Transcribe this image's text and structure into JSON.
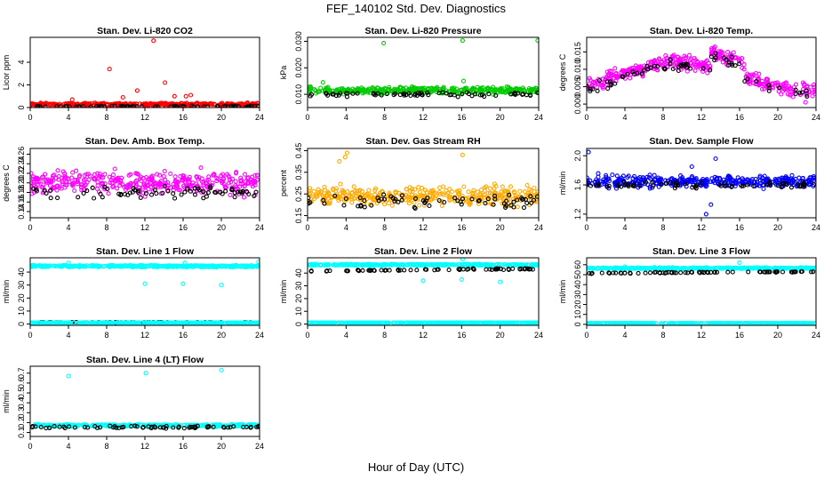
{
  "figure": {
    "title": "FEF_140102  Std. Dev. Diagnostics",
    "xlabel": "Hour of Day (UTC)"
  },
  "chart_data": [
    {
      "type": "scatter",
      "title": "Stan. Dev. Li-820 CO2",
      "ylabel": "Licor ppm",
      "xlim": [
        0,
        24
      ],
      "ylim": [
        0,
        6.2
      ],
      "xticks": [
        0,
        4,
        8,
        12,
        16,
        20,
        24
      ],
      "yticks": [
        0,
        2,
        4
      ],
      "ytick_labels": [
        "0",
        "2",
        "4"
      ],
      "series": [
        {
          "color": "#ff0000",
          "base": 0.28,
          "spread": 0.18,
          "outliers": [
            [
              8.3,
              3.4
            ],
            [
              12.9,
              5.9
            ],
            [
              11.2,
              1.5
            ],
            [
              14.1,
              2.2
            ],
            [
              16.3,
              1.0
            ],
            [
              16.8,
              1.1
            ],
            [
              15.1,
              1.0
            ],
            [
              9.7,
              0.9
            ],
            [
              4.4,
              0.7
            ]
          ]
        },
        {
          "color": "#000000",
          "base": 0.1,
          "spread": 0.06,
          "outliers": []
        }
      ]
    },
    {
      "type": "scatter",
      "title": "Stan. Dev. Li-820 Pressure",
      "ylabel": "kPa",
      "xlim": [
        0,
        24
      ],
      "ylim": [
        0.005,
        0.0315
      ],
      "xticks": [
        0,
        4,
        8,
        12,
        16,
        20,
        24
      ],
      "yticks": [
        0.01,
        0.02,
        0.03
      ],
      "ytick_labels": [
        "0.010",
        "0.020",
        "0.030"
      ],
      "series": [
        {
          "color": "#00cc00",
          "base": 0.0115,
          "spread": 0.0018,
          "outliers": [
            [
              7.9,
              0.0293
            ],
            [
              16.1,
              0.0303
            ],
            [
              23.9,
              0.0303
            ],
            [
              16.2,
              0.015
            ],
            [
              1.6,
              0.0145
            ]
          ]
        },
        {
          "color": "#000000",
          "base": 0.01,
          "spread": 0.0012,
          "outliers": []
        }
      ]
    },
    {
      "type": "scatter",
      "title": "Stan. Dev. Li-820 Temp.",
      "ylabel": "degrees C",
      "xlim": [
        0,
        24
      ],
      "ylim": [
        -0.001,
        0.0192
      ],
      "xticks": [
        0,
        4,
        8,
        12,
        16,
        20,
        24
      ],
      "yticks": [
        0,
        0.005,
        0.01,
        0.015
      ],
      "ytick_labels": [
        "0.000",
        "0.005",
        "0.010",
        "0.015"
      ],
      "series": [
        {
          "color": "#ff00ff",
          "base": 0.008,
          "spread": 0.003,
          "wave": "temp",
          "outliers": [
            [
              22.9,
              0.0005
            ]
          ]
        },
        {
          "color": "#000000",
          "base": 0.007,
          "spread": 0.002,
          "wave": "temp",
          "outliers": []
        }
      ]
    },
    {
      "type": "scatter",
      "title": "Stan. Dev. Amb. Box Temp.",
      "ylabel": "degrees C",
      "xlim": [
        0,
        24
      ],
      "ylim": [
        0.127,
        0.272
      ],
      "xticks": [
        0,
        4,
        8,
        12,
        16,
        20,
        24
      ],
      "yticks": [
        0.14,
        0.16,
        0.18,
        0.2,
        0.22,
        0.24,
        0.26
      ],
      "ytick_labels": [
        "0.14",
        "0.16",
        "0.18",
        "0.20",
        "0.22",
        "0.24",
        "0.26"
      ],
      "series": [
        {
          "color": "#ff00ff",
          "base": 0.2,
          "spread": 0.035,
          "outliers": []
        },
        {
          "color": "#000000",
          "base": 0.18,
          "spread": 0.02,
          "outliers": []
        }
      ]
    },
    {
      "type": "scatter",
      "title": "Stan. Dev. Gas Stream RH",
      "ylabel": "percent",
      "xlim": [
        0,
        24
      ],
      "ylim": [
        0.14,
        0.46
      ],
      "xticks": [
        0,
        4,
        8,
        12,
        16,
        20,
        24
      ],
      "yticks": [
        0.15,
        0.25,
        0.35,
        0.45
      ],
      "ytick_labels": [
        "0.15",
        "0.25",
        "0.35",
        "0.45"
      ],
      "series": [
        {
          "color": "#ffaa00",
          "base": 0.24,
          "spread": 0.06,
          "outliers": [
            [
              4.1,
              0.44
            ],
            [
              3.9,
              0.42
            ],
            [
              16.1,
              0.43
            ],
            [
              3.3,
              0.4
            ]
          ]
        },
        {
          "color": "#000000",
          "base": 0.22,
          "spread": 0.045,
          "outliers": []
        }
      ]
    },
    {
      "type": "scatter",
      "title": "Stan. Dev. Sample Flow",
      "ylabel": "ml/min",
      "xlim": [
        0,
        24
      ],
      "ylim": [
        1.15,
        2.1
      ],
      "xticks": [
        0,
        4,
        8,
        12,
        16,
        20,
        24
      ],
      "yticks": [
        1.2,
        1.6,
        2.0
      ],
      "ytick_labels": [
        "1.2",
        "1.6",
        "2.0"
      ],
      "series": [
        {
          "color": "#0000ff",
          "base": 1.65,
          "spread": 0.12,
          "outliers": [
            [
              0.2,
              2.05
            ],
            [
              12.5,
              1.2
            ],
            [
              13.0,
              1.33
            ],
            [
              11.0,
              1.85
            ],
            [
              13.5,
              1.96
            ]
          ]
        },
        {
          "color": "#000000",
          "base": 1.6,
          "spread": 0.06,
          "outliers": []
        }
      ]
    },
    {
      "type": "scatter",
      "title": "Stan. Dev. Line 1 Flow",
      "ylabel": "ml/min",
      "xlim": [
        0,
        24
      ],
      "ylim": [
        -1,
        51
      ],
      "xticks": [
        0,
        4,
        8,
        12,
        16,
        20,
        24
      ],
      "yticks": [
        0,
        10,
        20,
        30,
        40
      ],
      "ytick_labels": [
        "0",
        "10",
        "20",
        "30",
        "40"
      ],
      "series": [
        {
          "color": "#00ffff",
          "base": 44.5,
          "spread": 1.0,
          "outliers": [
            [
              12.0,
              31
            ],
            [
              16.0,
              31
            ],
            [
              20.0,
              30
            ],
            [
              4.0,
              47
            ],
            [
              16.2,
              47
            ],
            [
              23.9,
              48
            ]
          ]
        },
        {
          "color": "#000000",
          "base": 1.2,
          "spread": 0.3,
          "outliers": []
        },
        {
          "color": "#00ffff",
          "base": 1.0,
          "spread": 0.2,
          "outliers": []
        }
      ]
    },
    {
      "type": "scatter",
      "title": "Stan. Dev. Line 2 Flow",
      "ylabel": "ml/min",
      "xlim": [
        0,
        24
      ],
      "ylim": [
        -1,
        52
      ],
      "xticks": [
        0,
        4,
        8,
        12,
        16,
        20,
        24
      ],
      "yticks": [
        0,
        10,
        20,
        30,
        40
      ],
      "ytick_labels": [
        "0",
        "10",
        "20",
        "30",
        "40"
      ],
      "series": [
        {
          "color": "#00ffff",
          "base": 46.5,
          "spread": 0.8,
          "outliers": [
            [
              12.0,
              34
            ],
            [
              16.0,
              35
            ],
            [
              20.0,
              33
            ],
            [
              16.1,
              51
            ]
          ]
        },
        {
          "color": "#000000",
          "base": 41.5,
          "spread": 0.8,
          "trend": 2.0,
          "outliers": []
        },
        {
          "color": "#00ffff",
          "base": 1.0,
          "spread": 0.2,
          "outliers": []
        }
      ]
    },
    {
      "type": "scatter",
      "title": "Stan. Dev. Line 3 Flow",
      "ylabel": "ml/min",
      "xlim": [
        0,
        24
      ],
      "ylim": [
        -1,
        67
      ],
      "xticks": [
        0,
        4,
        8,
        12,
        16,
        20,
        24
      ],
      "yticks": [
        0,
        10,
        20,
        30,
        40,
        50,
        60
      ],
      "ytick_labels": [
        "0",
        "10",
        "20",
        "30",
        "40",
        "50",
        "60"
      ],
      "series": [
        {
          "color": "#00ffff",
          "base": 56.5,
          "spread": 1.0,
          "outliers": [
            [
              16.0,
              62
            ],
            [
              4.0,
              58
            ]
          ]
        },
        {
          "color": "#000000",
          "base": 51.5,
          "spread": 0.7,
          "trend": 1.5,
          "outliers": []
        },
        {
          "color": "#00ffff",
          "base": 1.0,
          "spread": 0.2,
          "outliers": []
        }
      ]
    },
    {
      "type": "scatter",
      "title": "Stan. Dev. Line 4 (LT) Flow",
      "ylabel": "ml/min",
      "xlim": [
        0,
        24
      ],
      "ylim": [
        0.06,
        0.77
      ],
      "xticks": [
        0,
        4,
        8,
        12,
        16,
        20,
        24
      ],
      "yticks": [
        0.1,
        0.2,
        0.3,
        0.4,
        0.5,
        0.6,
        0.7
      ],
      "ytick_labels": [
        "0.1",
        "0.2",
        "0.3",
        "0.4",
        "0.5",
        "0.6",
        "0.7"
      ],
      "series": [
        {
          "color": "#00ffff",
          "base": 0.17,
          "spread": 0.018,
          "outliers": [
            [
              4.0,
              0.67
            ],
            [
              12.1,
              0.7
            ],
            [
              20.0,
              0.73
            ]
          ]
        },
        {
          "color": "#000000",
          "base": 0.155,
          "spread": 0.018,
          "outliers": []
        }
      ]
    }
  ]
}
